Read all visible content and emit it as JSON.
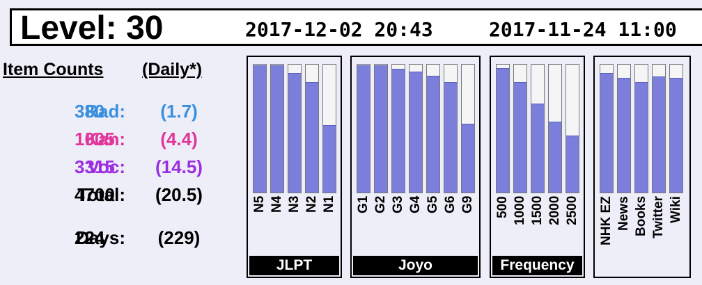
{
  "header": {
    "level_label": "Level:",
    "level_value": "30",
    "date_1": "2017-12-02 20:43",
    "date_2": "2017-11-24 11:00"
  },
  "counts": {
    "heading": "Item Counts",
    "daily_heading": "(Daily*)",
    "rows": [
      {
        "label": "Rad:",
        "value": "380",
        "daily": "(1.7)",
        "color": "#3a8fe0"
      },
      {
        "label": "Kan:",
        "value": "1005",
        "daily": "(4.4)",
        "color": "#e0359a"
      },
      {
        "label": "Voc:",
        "value": "3315",
        "daily": "(14.5)",
        "color": "#9a2ee0"
      },
      {
        "label": "Total:",
        "value": "4700",
        "daily": "(20.5)",
        "color": "#000000"
      },
      {
        "label": "Days:",
        "value": "224",
        "daily": "(229)",
        "color": "#000000"
      }
    ]
  },
  "panels": [
    {
      "title": "JLPT",
      "bars": [
        {
          "label": "N5",
          "level": 0.99
        },
        {
          "label": "N4",
          "level": 0.99
        },
        {
          "label": "N3",
          "level": 0.93
        },
        {
          "label": "N2",
          "level": 0.86
        },
        {
          "label": "N1",
          "level": 0.52
        }
      ]
    },
    {
      "title": "Joyo",
      "bars": [
        {
          "label": "G1",
          "level": 0.99
        },
        {
          "label": "G2",
          "level": 0.99
        },
        {
          "label": "G3",
          "level": 0.96
        },
        {
          "label": "G4",
          "level": 0.94
        },
        {
          "label": "G5",
          "level": 0.91
        },
        {
          "label": "G6",
          "level": 0.86
        },
        {
          "label": "G9",
          "level": 0.53
        }
      ]
    },
    {
      "title": "Frequency",
      "bars": [
        {
          "label": "500",
          "level": 0.97
        },
        {
          "label": "1000",
          "level": 0.86
        },
        {
          "label": "1500",
          "level": 0.69
        },
        {
          "label": "2000",
          "level": 0.55
        },
        {
          "label": "2500",
          "level": 0.44
        }
      ]
    },
    {
      "title": "",
      "bars": [
        {
          "label": "NHK EZ",
          "level": 0.93
        },
        {
          "label": "News",
          "level": 0.89
        },
        {
          "label": "Books",
          "level": 0.86
        },
        {
          "label": "Twitter",
          "level": 0.9
        },
        {
          "label": "Wiki",
          "level": 0.89
        }
      ]
    }
  ],
  "colors": {
    "bar_fill": "#7b7fdb",
    "background": "#eeeef8"
  }
}
